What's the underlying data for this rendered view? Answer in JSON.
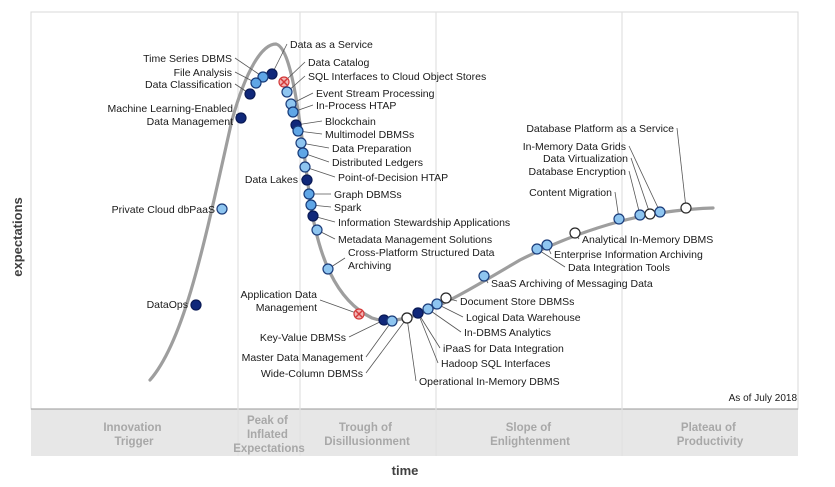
{
  "chart_data": {
    "type": "scatter",
    "xlabel": "time",
    "ylabel": "expectations",
    "annotation": "As of July 2018",
    "legend": {
      "colors": {
        "lt2": "#8ec5f0",
        "y2to5": "#5fa6e6",
        "y5to10": "#10287a",
        "gt10": "#f2b3b3",
        "obsolete": "#d33a3a",
        "plateau": "#ffffff"
      }
    },
    "phases": [
      {
        "lines": [
          "Innovation",
          "Trigger"
        ]
      },
      {
        "lines": [
          "Peak of",
          "Inflated",
          "Expectations"
        ]
      },
      {
        "lines": [
          "Trough of",
          "Disillusionment"
        ]
      },
      {
        "lines": [
          "Slope of",
          "Enlightenment"
        ]
      },
      {
        "lines": [
          "Plateau of",
          "Productivity"
        ]
      }
    ],
    "technologies": [
      {
        "name": "Data as a Service",
        "kind": "dark"
      },
      {
        "name": "Time Series DBMS",
        "kind": "mid"
      },
      {
        "name": "File Analysis",
        "kind": "mid"
      },
      {
        "name": "Data Classification",
        "kind": "dark"
      },
      {
        "name": "Data Catalog",
        "kind": "obsolete"
      },
      {
        "name": "SQL Interfaces to Cloud Object Stores",
        "kind": "light"
      },
      {
        "name": "Machine Learning-Enabled Data Management",
        "kind": "dark"
      },
      {
        "name": "Event Stream Processing",
        "kind": "light"
      },
      {
        "name": "In-Process HTAP",
        "kind": "mid"
      },
      {
        "name": "Blockchain",
        "kind": "dark"
      },
      {
        "name": "Multimodel DBMSs",
        "kind": "mid"
      },
      {
        "name": "Data Preparation",
        "kind": "light"
      },
      {
        "name": "Distributed Ledgers",
        "kind": "mid"
      },
      {
        "name": "Point-of-Decision HTAP",
        "kind": "light"
      },
      {
        "name": "Data Lakes",
        "kind": "dark"
      },
      {
        "name": "Graph DBMSs",
        "kind": "mid"
      },
      {
        "name": "Spark",
        "kind": "mid"
      },
      {
        "name": "Private Cloud dbPaaS",
        "kind": "light"
      },
      {
        "name": "Information Stewardship Applications",
        "kind": "dark"
      },
      {
        "name": "Metadata Management Solutions",
        "kind": "light"
      },
      {
        "name": "Cross-Platform Structured Data Archiving",
        "kind": "light"
      },
      {
        "name": "DataOps",
        "kind": "dark"
      },
      {
        "name": "Application Data Management",
        "kind": "obsolete"
      },
      {
        "name": "Key-Value DBMSs",
        "kind": "dark"
      },
      {
        "name": "Master Data Management",
        "kind": "light"
      },
      {
        "name": "Wide-Column DBMSs",
        "kind": "plateau"
      },
      {
        "name": "Operational In-Memory DBMS",
        "kind": "plateau"
      },
      {
        "name": "iPaaS for Data Integration",
        "kind": "mid"
      },
      {
        "name": "Hadoop SQL Interfaces",
        "kind": "dark"
      },
      {
        "name": "In-DBMS Analytics",
        "kind": "light"
      },
      {
        "name": "Logical Data Warehouse",
        "kind": "light"
      },
      {
        "name": "Document Store DBMSs",
        "kind": "plateau"
      },
      {
        "name": "SaaS Archiving of Messaging Data",
        "kind": "light"
      },
      {
        "name": "Data Integration Tools",
        "kind": "light"
      },
      {
        "name": "Enterprise Information Archiving",
        "kind": "light"
      },
      {
        "name": "Analytical In-Memory DBMS",
        "kind": "plateau"
      },
      {
        "name": "Content Migration",
        "kind": "light"
      },
      {
        "name": "Database Encryption",
        "kind": "light"
      },
      {
        "name": "Data Virtualization",
        "kind": "plateau"
      },
      {
        "name": "In-Memory Data Grids",
        "kind": "light"
      },
      {
        "name": "Database Platform as a Service",
        "kind": "plateau"
      }
    ]
  }
}
